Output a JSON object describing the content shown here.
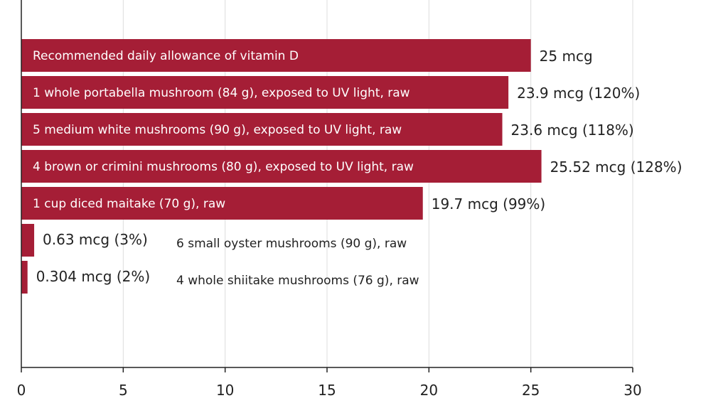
{
  "chart_data": {
    "type": "bar",
    "orientation": "horizontal",
    "title": "",
    "xlabel": "",
    "ylabel": "",
    "xlim": [
      0,
      30
    ],
    "xticks": [
      0,
      5,
      10,
      15,
      20,
      25,
      30
    ],
    "grid": true,
    "bar_color": "#a51e36",
    "categories": [
      "Recommended daily allowance of vitamin D",
      "1 whole portabella mushroom (84 g), exposed to UV light, raw",
      "5 medium white mushrooms (90 g), exposed to UV light, raw",
      "4 brown or crimini mushrooms (80 g), exposed to UV light, raw",
      "1 cup diced maitake (70 g), raw",
      "6 small oyster mushrooms (90 g), raw",
      "4 whole shiitake mushrooms (76 g), raw"
    ],
    "values": [
      25,
      23.9,
      23.6,
      25.52,
      19.7,
      0.63,
      0.304
    ],
    "value_labels": [
      "25 mcg",
      "23.9 mcg (120%)",
      "23.6 mcg (118%)",
      "25.52 mcg (128%)",
      "19.7 mcg (99%)",
      "0.63 mcg (3%)",
      "0.304 mcg (2%)"
    ]
  }
}
